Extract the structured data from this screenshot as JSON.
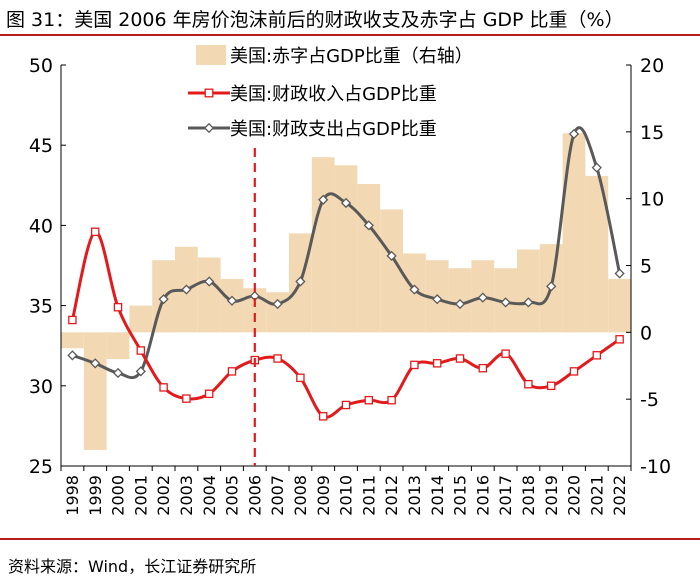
{
  "title": "图 31：美国 2006 年房价泡沫前后的财政收支及赤字占 GDP 比重（%）",
  "source": "资料来源：Wind，长江证券研究所",
  "colors": {
    "deficit_bar": "#f2d9b3",
    "revenue_line": "#e31a1c",
    "expenditure_line": "#595959",
    "marker_line": "#e31a1c",
    "rule": "#b71c1c"
  },
  "chart_data": {
    "type": "combo",
    "x": [
      "1998",
      "1999",
      "2000",
      "2001",
      "2002",
      "2003",
      "2004",
      "2005",
      "2006",
      "2007",
      "2008",
      "2009",
      "2010",
      "2011",
      "2012",
      "2013",
      "2014",
      "2015",
      "2016",
      "2017",
      "2018",
      "2019",
      "2020",
      "2021",
      "2022"
    ],
    "left_axis": {
      "range": [
        25,
        50
      ],
      "ticks": [
        "25",
        "30",
        "35",
        "40",
        "45",
        "50"
      ]
    },
    "right_axis": {
      "range": [
        -10,
        20
      ],
      "ticks": [
        "-10",
        "-5",
        "0",
        "5",
        "10",
        "15",
        "20"
      ]
    },
    "series": [
      {
        "name": "美国:赤字占GDP比重（右轴）",
        "type": "bar",
        "axis": "right",
        "values": [
          -1.2,
          -8.8,
          -2.0,
          2.0,
          5.4,
          6.4,
          5.6,
          4.0,
          3.3,
          3.0,
          7.4,
          13.1,
          12.5,
          11.1,
          9.2,
          5.9,
          5.4,
          4.8,
          5.4,
          4.8,
          6.2,
          6.6,
          14.9,
          11.7,
          4.0
        ]
      },
      {
        "name": "美国:财政收入占GDP比重",
        "type": "line",
        "axis": "left",
        "values": [
          34.1,
          39.6,
          34.9,
          32.2,
          29.9,
          29.2,
          29.5,
          30.9,
          31.6,
          31.7,
          30.5,
          28.1,
          28.8,
          29.1,
          29.1,
          31.3,
          31.4,
          31.7,
          31.1,
          32.0,
          30.1,
          30.0,
          30.9,
          31.9,
          32.9
        ]
      },
      {
        "name": "美国:财政支出占GDP比重",
        "type": "line",
        "axis": "left",
        "values": [
          31.9,
          31.4,
          30.8,
          30.9,
          35.4,
          36.0,
          36.5,
          35.3,
          35.6,
          35.1,
          36.5,
          41.6,
          41.4,
          40.0,
          38.1,
          36.0,
          35.4,
          35.1,
          35.5,
          35.2,
          35.2,
          36.2,
          45.7,
          43.6,
          37.0
        ]
      }
    ],
    "annotations": [
      {
        "type": "vertical-dashed-line",
        "x": "2006"
      }
    ],
    "legend": {
      "placement": "top-center",
      "items": [
        "美国:赤字占GDP比重（右轴）",
        "美国:财政收入占GDP比重",
        "美国:财政支出占GDP比重"
      ]
    },
    "grid": false
  }
}
